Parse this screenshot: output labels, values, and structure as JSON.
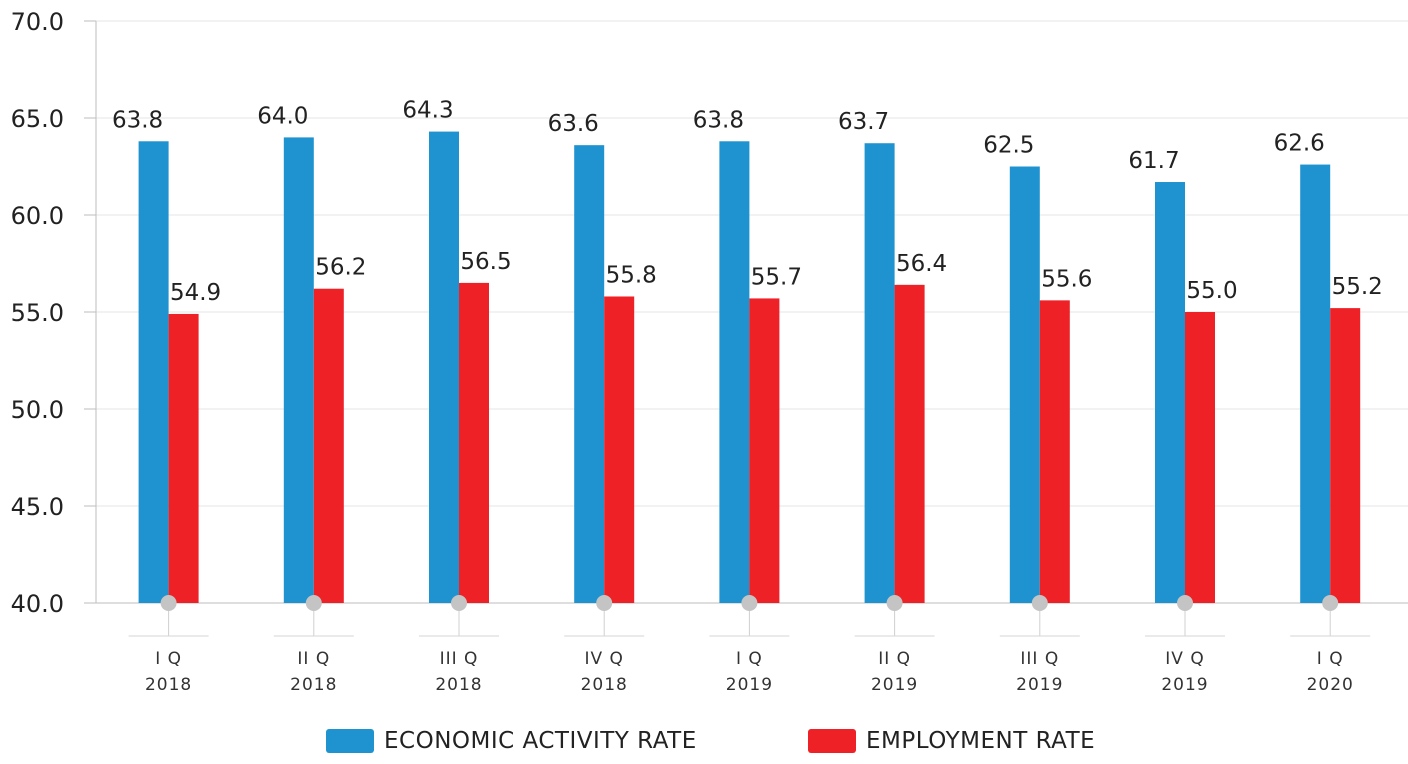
{
  "chart_data": {
    "type": "bar",
    "categories": [
      [
        "I Q",
        "2018"
      ],
      [
        "II Q",
        "2018"
      ],
      [
        "III Q",
        "2018"
      ],
      [
        "IV Q",
        "2018"
      ],
      [
        "I Q",
        "2019"
      ],
      [
        "II Q",
        "2019"
      ],
      [
        "III Q",
        "2019"
      ],
      [
        "IV Q",
        "2019"
      ],
      [
        "I Q",
        "2020"
      ]
    ],
    "series": [
      {
        "name": "ECONOMIC ACTIVITY RATE",
        "color": "#1f93d0",
        "values": [
          63.8,
          64.0,
          64.3,
          63.6,
          63.8,
          63.7,
          62.5,
          61.7,
          62.6
        ],
        "labels": [
          "63.8",
          "64.0",
          "64.3",
          "63.6",
          "63.8",
          "63.7",
          "62.5",
          "61.7",
          "62.6"
        ]
      },
      {
        "name": "EMPLOYMENT RATE",
        "color": "#ed2126",
        "values": [
          54.9,
          56.2,
          56.5,
          55.8,
          55.7,
          56.4,
          55.6,
          55.0,
          55.2
        ],
        "labels": [
          "54.9",
          "56.2",
          "56.5",
          "55.8",
          "55.7",
          "56.4",
          "55.6",
          "55.0",
          "55.2"
        ]
      }
    ],
    "ylim": [
      40,
      70
    ],
    "yticks": [
      "40.0",
      "45.0",
      "50.0",
      "55.0",
      "60.0",
      "65.0",
      "70.0"
    ],
    "ytick_values": [
      40,
      45,
      50,
      55,
      60,
      65,
      70
    ],
    "grid": true,
    "legend_position": "bottom"
  },
  "legend": {
    "items": [
      {
        "label": "ECONOMIC ACTIVITY RATE",
        "color": "#1f93d0"
      },
      {
        "label": "EMPLOYMENT RATE",
        "color": "#ed2126"
      }
    ]
  }
}
